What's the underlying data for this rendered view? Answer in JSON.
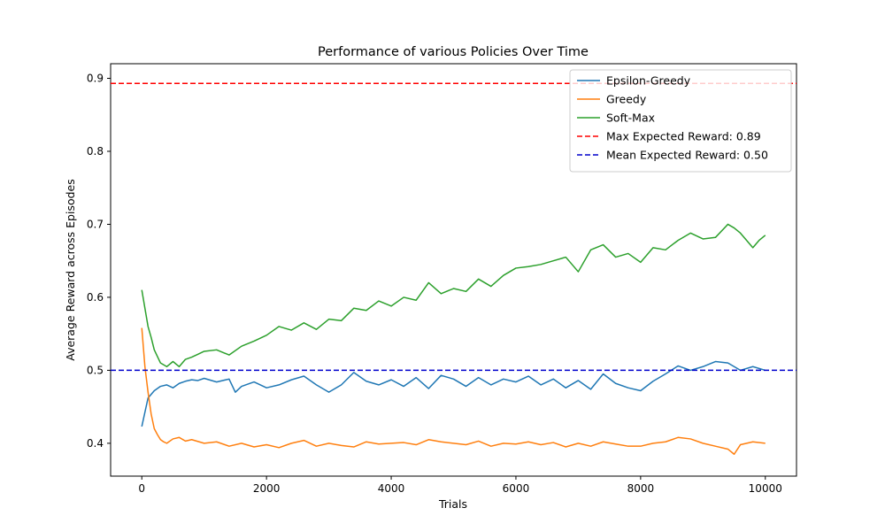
{
  "chart_data": {
    "type": "line",
    "title": "Performance of various Policies Over Time",
    "xlabel": "Trials",
    "ylabel": "Average Reward across Episodes",
    "xlim": [
      -500,
      10500
    ],
    "ylim": [
      0.355,
      0.92
    ],
    "xticks": [
      0,
      2000,
      4000,
      6000,
      8000,
      10000
    ],
    "yticks": [
      0.4,
      0.5,
      0.6,
      0.7,
      0.8,
      0.9
    ],
    "grid": false,
    "legend_position": "top-right",
    "series": [
      {
        "name": "Epsilon-Greedy",
        "color": "#1f77b4",
        "x": [
          0,
          100,
          200,
          300,
          400,
          500,
          600,
          700,
          800,
          900,
          1000,
          1200,
          1400,
          1500,
          1600,
          1800,
          2000,
          2200,
          2400,
          2600,
          2800,
          3000,
          3200,
          3400,
          3600,
          3800,
          4000,
          4200,
          4400,
          4600,
          4800,
          5000,
          5200,
          5400,
          5600,
          5800,
          6000,
          6200,
          6400,
          6600,
          6800,
          7000,
          7200,
          7400,
          7600,
          7800,
          8000,
          8200,
          8400,
          8600,
          8800,
          9000,
          9200,
          9400,
          9600,
          9800,
          10000
        ],
        "y": [
          0.423,
          0.462,
          0.472,
          0.478,
          0.48,
          0.476,
          0.482,
          0.485,
          0.487,
          0.486,
          0.489,
          0.484,
          0.488,
          0.47,
          0.478,
          0.484,
          0.476,
          0.48,
          0.487,
          0.492,
          0.48,
          0.47,
          0.48,
          0.497,
          0.485,
          0.48,
          0.487,
          0.478,
          0.49,
          0.475,
          0.493,
          0.488,
          0.478,
          0.49,
          0.48,
          0.488,
          0.484,
          0.492,
          0.48,
          0.488,
          0.476,
          0.486,
          0.474,
          0.495,
          0.482,
          0.476,
          0.472,
          0.485,
          0.495,
          0.506,
          0.5,
          0.505,
          0.512,
          0.51,
          0.5,
          0.505,
          0.5
        ]
      },
      {
        "name": "Greedy",
        "color": "#ff7f0e",
        "x": [
          0,
          50,
          100,
          150,
          200,
          250,
          300,
          350,
          400,
          500,
          600,
          700,
          800,
          1000,
          1200,
          1400,
          1600,
          1800,
          2000,
          2200,
          2400,
          2600,
          2800,
          3000,
          3200,
          3400,
          3600,
          3800,
          4000,
          4200,
          4400,
          4600,
          4800,
          5000,
          5200,
          5400,
          5600,
          5800,
          6000,
          6200,
          6400,
          6600,
          6800,
          7000,
          7200,
          7400,
          7600,
          7800,
          8000,
          8200,
          8400,
          8600,
          8800,
          9000,
          9200,
          9400,
          9500,
          9600,
          9800,
          10000
        ],
        "y": [
          0.558,
          0.505,
          0.47,
          0.44,
          0.42,
          0.412,
          0.405,
          0.402,
          0.4,
          0.406,
          0.408,
          0.403,
          0.405,
          0.4,
          0.402,
          0.396,
          0.4,
          0.395,
          0.398,
          0.394,
          0.4,
          0.404,
          0.396,
          0.4,
          0.397,
          0.395,
          0.402,
          0.399,
          0.4,
          0.401,
          0.398,
          0.405,
          0.402,
          0.4,
          0.398,
          0.403,
          0.396,
          0.4,
          0.399,
          0.402,
          0.398,
          0.401,
          0.395,
          0.4,
          0.396,
          0.402,
          0.399,
          0.396,
          0.396,
          0.4,
          0.402,
          0.408,
          0.406,
          0.4,
          0.396,
          0.392,
          0.385,
          0.398,
          0.402,
          0.4
        ]
      },
      {
        "name": "Soft-Max",
        "color": "#2ca02c",
        "x": [
          0,
          50,
          100,
          150,
          200,
          300,
          400,
          500,
          600,
          700,
          800,
          900,
          1000,
          1200,
          1400,
          1600,
          1800,
          2000,
          2200,
          2400,
          2600,
          2800,
          3000,
          3200,
          3400,
          3600,
          3800,
          4000,
          4200,
          4400,
          4600,
          4800,
          5000,
          5200,
          5400,
          5600,
          5800,
          6000,
          6200,
          6400,
          6600,
          6800,
          7000,
          7200,
          7400,
          7600,
          7800,
          8000,
          8200,
          8400,
          8600,
          8800,
          9000,
          9200,
          9400,
          9500,
          9600,
          9800,
          9900,
          10000
        ],
        "y": [
          0.61,
          0.585,
          0.56,
          0.545,
          0.528,
          0.51,
          0.505,
          0.512,
          0.505,
          0.515,
          0.518,
          0.522,
          0.526,
          0.528,
          0.521,
          0.533,
          0.54,
          0.548,
          0.56,
          0.555,
          0.565,
          0.556,
          0.57,
          0.568,
          0.585,
          0.582,
          0.595,
          0.588,
          0.6,
          0.596,
          0.62,
          0.605,
          0.612,
          0.608,
          0.625,
          0.615,
          0.63,
          0.64,
          0.642,
          0.645,
          0.65,
          0.655,
          0.635,
          0.665,
          0.672,
          0.655,
          0.66,
          0.648,
          0.668,
          0.665,
          0.678,
          0.688,
          0.68,
          0.682,
          0.7,
          0.695,
          0.688,
          0.668,
          0.678,
          0.685
        ]
      },
      {
        "name": "Max Expected Reward: 0.89",
        "color": "#ff0000",
        "dashed": true,
        "hline": 0.893
      },
      {
        "name": "Mean Expected Reward: 0.50",
        "color": "#0000cc",
        "dashed": true,
        "hline": 0.5
      }
    ]
  }
}
